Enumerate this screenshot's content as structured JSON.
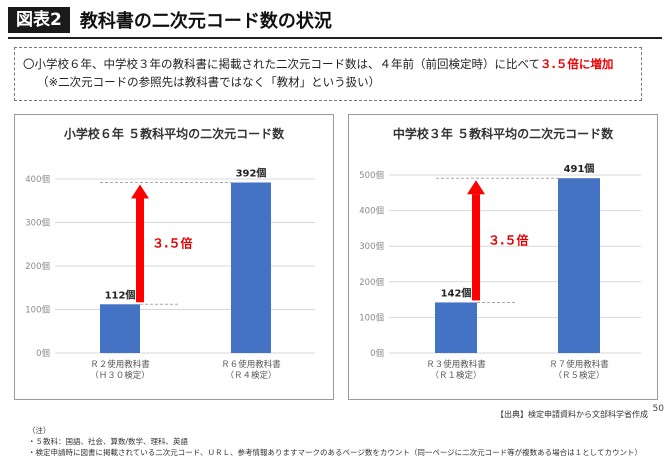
{
  "header": {
    "badge": "図表2",
    "title": "教科書の二次元コード数の状況"
  },
  "note": {
    "line1_pre": "〇小学校６年、中学校３年の教科書に掲載された二次元コード数は、４年前（前回検定時）に比べて",
    "line1_highlight": "３.５倍に増加",
    "line2": "（※二次元コードの参照先は教科書ではなく「教材」という扱い）"
  },
  "chart_data": [
    {
      "type": "bar",
      "title": "小学校６年 ５教科平均の二次元コード数",
      "categories": [
        [
          "Ｒ２使用教科書",
          "（Ｈ３０検定）"
        ],
        [
          "Ｒ６使用教科書",
          "（Ｒ４検定）"
        ]
      ],
      "values": [
        112,
        392
      ],
      "value_labels": [
        "112個",
        "392個"
      ],
      "ylim": [
        0,
        400
      ],
      "yticks": [
        0,
        100,
        200,
        300,
        400
      ],
      "ytick_labels": [
        "0個",
        "100個",
        "200個",
        "300個",
        "400個"
      ],
      "ratio_label": "３.５倍",
      "colors": {
        "bar": "#4472c4",
        "arrow": "#ff0000",
        "ratio": "#e00000"
      }
    },
    {
      "type": "bar",
      "title": "中学校３年 ５教科平均の二次元コード数",
      "categories": [
        [
          "Ｒ３使用教科書",
          "（Ｒ１検定）"
        ],
        [
          "Ｒ７使用教科書",
          "（Ｒ５検定）"
        ]
      ],
      "values": [
        142,
        491
      ],
      "value_labels": [
        "142個",
        "491個"
      ],
      "ylim": [
        0,
        500
      ],
      "yticks": [
        0,
        100,
        200,
        300,
        400,
        500
      ],
      "ytick_labels": [
        "0個",
        "100個",
        "200個",
        "300個",
        "400個",
        "500個"
      ],
      "ratio_label": "３.５倍",
      "colors": {
        "bar": "#4472c4",
        "arrow": "#ff0000",
        "ratio": "#e00000"
      }
    }
  ],
  "source": "【出典】検定申請資料から文部科学省作成",
  "footnotes": [
    "（注）",
    "・５教科：国語、社会、算数/数学、理科、英語",
    "・検定申請時に図書に掲載されている二次元コード、ＵＲＬ、参考情報ありますマークのあるページ数をカウント（同一ページに二次元コード等が複数ある場合は１としてカウント）"
  ],
  "page_number": "50"
}
